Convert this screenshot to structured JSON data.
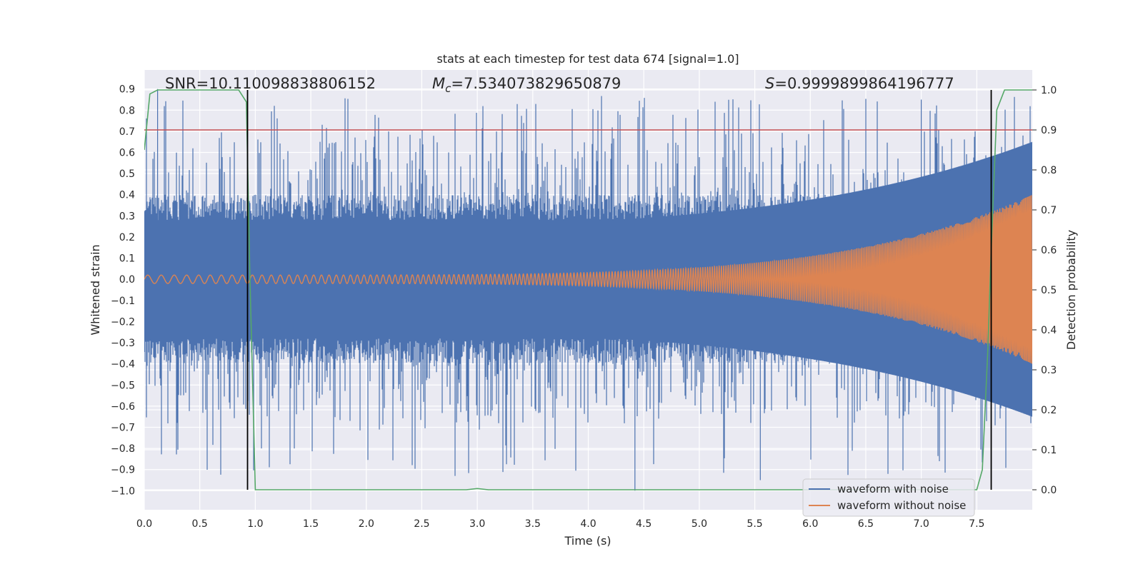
{
  "chart_data": {
    "type": "line",
    "title": "stats at each timestep for test data 674 [signal=1.0]",
    "xlabel": "Time (s)",
    "ylabel": "Whitened strain",
    "y2label": "Detection probability",
    "xlim": [
      0.0,
      8.0
    ],
    "ylim": [
      -1.09,
      0.99
    ],
    "y2lim": [
      -0.05,
      1.05
    ],
    "xticks": [
      "0.0",
      "0.5",
      "1.0",
      "1.5",
      "2.0",
      "2.5",
      "3.0",
      "3.5",
      "4.0",
      "4.5",
      "5.0",
      "5.5",
      "6.0",
      "6.5",
      "7.0",
      "7.5"
    ],
    "yticks": [
      "0.9",
      "0.8",
      "0.7",
      "0.6",
      "0.5",
      "0.4",
      "0.3",
      "0.2",
      "0.1",
      "0.0",
      "−0.1",
      "−0.2",
      "−0.3",
      "−0.4",
      "−0.5",
      "−0.6",
      "−0.7",
      "−0.8",
      "−0.9",
      "−1.0"
    ],
    "y2ticks": [
      "1.0",
      "0.9",
      "0.8",
      "0.7",
      "0.6",
      "0.5",
      "0.4",
      "0.3",
      "0.2",
      "0.1",
      "0.0"
    ],
    "grid": true,
    "legend_position": "bottom-right",
    "annotations": {
      "snr": "SNR=10.110098838806152",
      "mc_symbol": "M",
      "mc_sub": "c",
      "mc_value": "=7.534073829650879",
      "s_symbol": "S",
      "s_value": "=0.9999899864196777"
    },
    "series": [
      {
        "name": "waveform with noise",
        "axis": "left",
        "color": "#4c72b0",
        "description": "dense noisy strain, envelope ±0.35 with spikes to 0.9 / −1.0"
      },
      {
        "name": "waveform without noise",
        "axis": "left",
        "color": "#dd8452",
        "description": "chirp, amplitude 0.02 at t=0 rising to ~0.4 at t=8"
      },
      {
        "name": "detection probability",
        "axis": "right",
        "color": "#55a868",
        "x": [
          0.0,
          0.05,
          0.12,
          0.25,
          0.85,
          0.92,
          0.95,
          1.0,
          2.9,
          3.0,
          3.1,
          7.5,
          7.55,
          7.6,
          7.63,
          7.68,
          7.75,
          8.0
        ],
        "y": [
          0.85,
          0.99,
          1.0,
          1.0,
          1.0,
          0.97,
          0.55,
          0.0,
          0.0,
          0.003,
          0.0,
          0.0,
          0.05,
          0.35,
          0.6,
          0.95,
          1.0,
          1.0
        ]
      }
    ],
    "threshold": {
      "axis": "right",
      "value": 0.9,
      "color": "#c44e52"
    },
    "vlines": [
      {
        "x": 0.93,
        "y2_range": [
          0.0,
          1.0
        ],
        "color": "#000000"
      },
      {
        "x": 7.63,
        "y2_range": [
          0.0,
          1.0
        ],
        "color": "#000000"
      }
    ]
  }
}
